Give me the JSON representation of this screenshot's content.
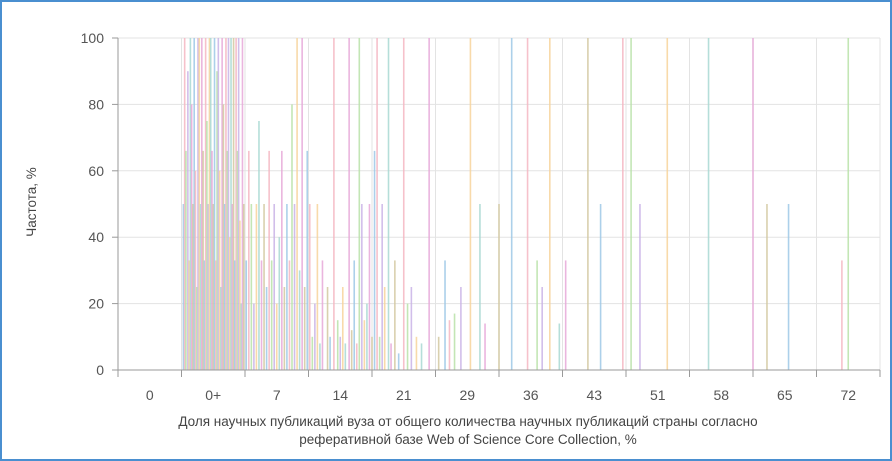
{
  "colors": {
    "frame": "#4a8fd0",
    "grid": "#e3e3e3",
    "axis": "#9a9a9a",
    "series_palette": [
      "#9ec8e6",
      "#f4b6c2",
      "#b9e2a8",
      "#c9b3e6",
      "#f7d49b",
      "#a8d8d2",
      "#e6a8d8",
      "#d2c8a0"
    ]
  },
  "chart_data": {
    "type": "bar",
    "title": "",
    "ylabel": "Частота, %",
    "xlabel_lines": [
      "Доля научных публикаций вуза от общего количества научных публикаций страны согласно",
      "реферативной базе Web of Science Core Collection, %"
    ],
    "ylim": [
      0,
      100
    ],
    "yticks": [
      0,
      20,
      40,
      60,
      80,
      100
    ],
    "grid": true,
    "categories": [
      "0",
      "0+",
      "7",
      "14",
      "21",
      "29",
      "36",
      "43",
      "51",
      "58",
      "65",
      "72"
    ],
    "xlim": [
      -0.5,
      11.5
    ],
    "bars": [
      {
        "x": 0.53,
        "y": 50
      },
      {
        "x": 0.55,
        "y": 100
      },
      {
        "x": 0.57,
        "y": 66
      },
      {
        "x": 0.6,
        "y": 90
      },
      {
        "x": 0.62,
        "y": 33
      },
      {
        "x": 0.64,
        "y": 100
      },
      {
        "x": 0.66,
        "y": 80
      },
      {
        "x": 0.68,
        "y": 50
      },
      {
        "x": 0.7,
        "y": 100
      },
      {
        "x": 0.72,
        "y": 60
      },
      {
        "x": 0.74,
        "y": 25
      },
      {
        "x": 0.76,
        "y": 100
      },
      {
        "x": 0.78,
        "y": 100
      },
      {
        "x": 0.8,
        "y": 50
      },
      {
        "x": 0.82,
        "y": 100
      },
      {
        "x": 0.84,
        "y": 66
      },
      {
        "x": 0.86,
        "y": 33
      },
      {
        "x": 0.88,
        "y": 100
      },
      {
        "x": 0.9,
        "y": 75
      },
      {
        "x": 0.92,
        "y": 50
      },
      {
        "x": 0.94,
        "y": 100
      },
      {
        "x": 0.96,
        "y": 100
      },
      {
        "x": 0.98,
        "y": 66
      },
      {
        "x": 1.0,
        "y": 50
      },
      {
        "x": 1.02,
        "y": 100
      },
      {
        "x": 1.04,
        "y": 33
      },
      {
        "x": 1.06,
        "y": 90
      },
      {
        "x": 1.08,
        "y": 100
      },
      {
        "x": 1.1,
        "y": 60
      },
      {
        "x": 1.12,
        "y": 25
      },
      {
        "x": 1.14,
        "y": 100
      },
      {
        "x": 1.16,
        "y": 80
      },
      {
        "x": 1.18,
        "y": 50
      },
      {
        "x": 1.2,
        "y": 100
      },
      {
        "x": 1.22,
        "y": 66
      },
      {
        "x": 1.24,
        "y": 100
      },
      {
        "x": 1.26,
        "y": 40
      },
      {
        "x": 1.28,
        "y": 100
      },
      {
        "x": 1.3,
        "y": 50
      },
      {
        "x": 1.32,
        "y": 100
      },
      {
        "x": 1.34,
        "y": 33
      },
      {
        "x": 1.36,
        "y": 100
      },
      {
        "x": 1.38,
        "y": 66
      },
      {
        "x": 1.4,
        "y": 100
      },
      {
        "x": 1.42,
        "y": 45
      },
      {
        "x": 1.44,
        "y": 20
      },
      {
        "x": 1.46,
        "y": 100
      },
      {
        "x": 1.48,
        "y": 50
      },
      {
        "x": 1.52,
        "y": 33
      },
      {
        "x": 1.56,
        "y": 66
      },
      {
        "x": 1.6,
        "y": 50
      },
      {
        "x": 1.64,
        "y": 20
      },
      {
        "x": 1.68,
        "y": 50
      },
      {
        "x": 1.72,
        "y": 75
      },
      {
        "x": 1.76,
        "y": 33
      },
      {
        "x": 1.8,
        "y": 50
      },
      {
        "x": 1.84,
        "y": 25
      },
      {
        "x": 1.88,
        "y": 66
      },
      {
        "x": 1.92,
        "y": 33
      },
      {
        "x": 1.96,
        "y": 50
      },
      {
        "x": 2.0,
        "y": 20
      },
      {
        "x": 2.04,
        "y": 40
      },
      {
        "x": 2.08,
        "y": 66
      },
      {
        "x": 2.12,
        "y": 25
      },
      {
        "x": 2.16,
        "y": 50
      },
      {
        "x": 2.2,
        "y": 33
      },
      {
        "x": 2.24,
        "y": 80
      },
      {
        "x": 2.28,
        "y": 50
      },
      {
        "x": 2.32,
        "y": 100
      },
      {
        "x": 2.36,
        "y": 30
      },
      {
        "x": 2.4,
        "y": 100
      },
      {
        "x": 2.44,
        "y": 25
      },
      {
        "x": 2.48,
        "y": 66
      },
      {
        "x": 2.52,
        "y": 50
      },
      {
        "x": 2.56,
        "y": 10
      },
      {
        "x": 2.6,
        "y": 20
      },
      {
        "x": 2.64,
        "y": 50
      },
      {
        "x": 2.68,
        "y": 8
      },
      {
        "x": 2.72,
        "y": 33
      },
      {
        "x": 2.8,
        "y": 25
      },
      {
        "x": 2.84,
        "y": 10
      },
      {
        "x": 2.9,
        "y": 100
      },
      {
        "x": 2.96,
        "y": 15
      },
      {
        "x": 3.0,
        "y": 10
      },
      {
        "x": 3.04,
        "y": 25
      },
      {
        "x": 3.08,
        "y": 8
      },
      {
        "x": 3.14,
        "y": 100
      },
      {
        "x": 3.18,
        "y": 12
      },
      {
        "x": 3.22,
        "y": 33
      },
      {
        "x": 3.26,
        "y": 8
      },
      {
        "x": 3.3,
        "y": 100
      },
      {
        "x": 3.34,
        "y": 50
      },
      {
        "x": 3.38,
        "y": 15
      },
      {
        "x": 3.42,
        "y": 20
      },
      {
        "x": 3.46,
        "y": 50
      },
      {
        "x": 3.5,
        "y": 10
      },
      {
        "x": 3.54,
        "y": 66
      },
      {
        "x": 3.58,
        "y": 100
      },
      {
        "x": 3.62,
        "y": 10
      },
      {
        "x": 3.66,
        "y": 50
      },
      {
        "x": 3.7,
        "y": 25
      },
      {
        "x": 3.76,
        "y": 100
      },
      {
        "x": 3.8,
        "y": 8
      },
      {
        "x": 3.86,
        "y": 33
      },
      {
        "x": 3.92,
        "y": 5
      },
      {
        "x": 4.0,
        "y": 100
      },
      {
        "x": 4.06,
        "y": 20
      },
      {
        "x": 4.12,
        "y": 25
      },
      {
        "x": 4.2,
        "y": 10
      },
      {
        "x": 4.28,
        "y": 8
      },
      {
        "x": 4.4,
        "y": 100
      },
      {
        "x": 4.55,
        "y": 10
      },
      {
        "x": 4.65,
        "y": 33
      },
      {
        "x": 4.72,
        "y": 15
      },
      {
        "x": 4.8,
        "y": 17
      },
      {
        "x": 4.9,
        "y": 25
      },
      {
        "x": 5.05,
        "y": 100
      },
      {
        "x": 5.2,
        "y": 50
      },
      {
        "x": 5.28,
        "y": 14
      },
      {
        "x": 5.5,
        "y": 50
      },
      {
        "x": 5.7,
        "y": 100
      },
      {
        "x": 5.95,
        "y": 100
      },
      {
        "x": 6.1,
        "y": 33
      },
      {
        "x": 6.18,
        "y": 25
      },
      {
        "x": 6.3,
        "y": 100
      },
      {
        "x": 6.45,
        "y": 14
      },
      {
        "x": 6.55,
        "y": 33
      },
      {
        "x": 6.9,
        "y": 100
      },
      {
        "x": 7.1,
        "y": 50
      },
      {
        "x": 7.45,
        "y": 100
      },
      {
        "x": 7.58,
        "y": 100
      },
      {
        "x": 7.72,
        "y": 50
      },
      {
        "x": 8.15,
        "y": 100
      },
      {
        "x": 8.8,
        "y": 100
      },
      {
        "x": 9.5,
        "y": 100
      },
      {
        "x": 9.72,
        "y": 50
      },
      {
        "x": 10.06,
        "y": 50
      },
      {
        "x": 10.9,
        "y": 33
      },
      {
        "x": 11.0,
        "y": 100
      }
    ]
  }
}
